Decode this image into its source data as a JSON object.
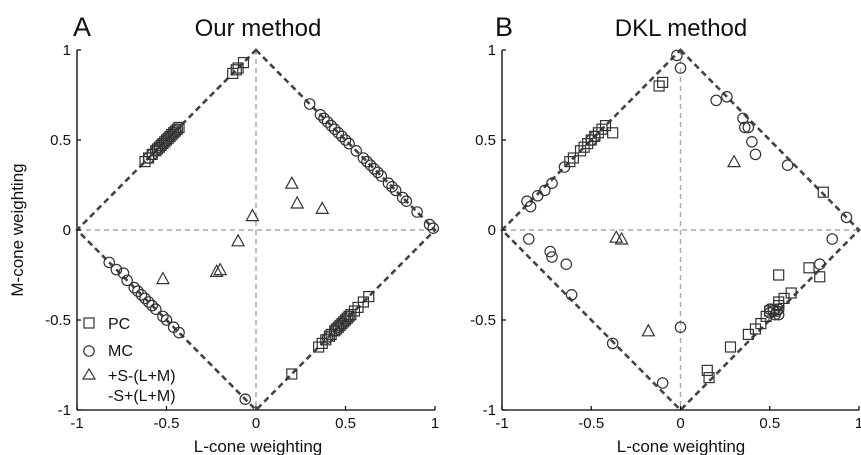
{
  "figure": {
    "ylabel": "M-cone weighting"
  },
  "chart_data": [
    {
      "type": "scatter",
      "panel_letter": "A",
      "title": "Our method",
      "xlabel": "L-cone weighting",
      "ylabel": "M-cone weighting",
      "xlim": [
        -1,
        1
      ],
      "ylim": [
        -1,
        1
      ],
      "x_tick_labels": [
        "-1",
        "-0.5",
        "0",
        "0.5",
        "1"
      ],
      "y_tick_labels": [
        "1",
        "0.5",
        "0",
        "-0.5",
        "-1"
      ],
      "grid": false,
      "legend_position": "bottom-left",
      "legend": [
        {
          "marker": "square",
          "label": "PC"
        },
        {
          "marker": "circle",
          "label": "MC"
        },
        {
          "marker": "triangle",
          "label": "+S-(L+M)"
        },
        {
          "marker": "none",
          "label": "-S+(L+M)"
        }
      ],
      "series": [
        {
          "name": "PC",
          "marker": "square",
          "points": [
            [
              -0.62,
              0.38
            ],
            [
              -0.6,
              0.4
            ],
            [
              -0.58,
              0.42
            ],
            [
              -0.56,
              0.44
            ],
            [
              -0.55,
              0.45
            ],
            [
              -0.54,
              0.46
            ],
            [
              -0.53,
              0.47
            ],
            [
              -0.52,
              0.48
            ],
            [
              -0.51,
              0.49
            ],
            [
              -0.5,
              0.5
            ],
            [
              -0.49,
              0.51
            ],
            [
              -0.48,
              0.52
            ],
            [
              -0.47,
              0.53
            ],
            [
              -0.46,
              0.54
            ],
            [
              -0.45,
              0.55
            ],
            [
              -0.44,
              0.56
            ],
            [
              -0.43,
              0.57
            ],
            [
              -0.13,
              0.87
            ],
            [
              -0.11,
              0.89
            ],
            [
              -0.1,
              0.9
            ],
            [
              -0.07,
              0.93
            ],
            [
              0.2,
              -0.8
            ],
            [
              0.35,
              -0.65
            ],
            [
              0.37,
              -0.63
            ],
            [
              0.39,
              -0.61
            ],
            [
              0.41,
              -0.59
            ],
            [
              0.42,
              -0.58
            ],
            [
              0.44,
              -0.56
            ],
            [
              0.45,
              -0.55
            ],
            [
              0.46,
              -0.54
            ],
            [
              0.47,
              -0.53
            ],
            [
              0.48,
              -0.52
            ],
            [
              0.49,
              -0.51
            ],
            [
              0.5,
              -0.5
            ],
            [
              0.51,
              -0.49
            ],
            [
              0.52,
              -0.48
            ],
            [
              0.53,
              -0.47
            ],
            [
              0.55,
              -0.45
            ],
            [
              0.57,
              -0.43
            ],
            [
              0.6,
              -0.4
            ],
            [
              0.63,
              -0.37
            ]
          ]
        },
        {
          "name": "MC",
          "marker": "circle",
          "points": [
            [
              -0.6,
              0.4
            ],
            [
              -0.58,
              0.42
            ],
            [
              -0.56,
              0.44
            ],
            [
              -0.54,
              0.46
            ],
            [
              -0.52,
              0.48
            ],
            [
              -0.5,
              0.5
            ],
            [
              -0.48,
              0.52
            ],
            [
              -0.46,
              0.54
            ],
            [
              -0.45,
              0.55
            ],
            [
              -0.44,
              0.56
            ],
            [
              0.3,
              0.7
            ],
            [
              0.36,
              0.64
            ],
            [
              0.38,
              0.62
            ],
            [
              0.4,
              0.6
            ],
            [
              0.42,
              0.58
            ],
            [
              0.44,
              0.56
            ],
            [
              0.46,
              0.54
            ],
            [
              0.48,
              0.52
            ],
            [
              0.5,
              0.5
            ],
            [
              0.52,
              0.48
            ],
            [
              0.56,
              0.44
            ],
            [
              0.6,
              0.4
            ],
            [
              0.62,
              0.38
            ],
            [
              0.64,
              0.36
            ],
            [
              0.66,
              0.34
            ],
            [
              0.68,
              0.32
            ],
            [
              0.7,
              0.3
            ],
            [
              0.74,
              0.26
            ],
            [
              0.76,
              0.24
            ],
            [
              0.78,
              0.22
            ],
            [
              0.82,
              0.18
            ],
            [
              0.84,
              0.16
            ],
            [
              0.9,
              0.1
            ],
            [
              0.97,
              0.03
            ],
            [
              0.99,
              0.01
            ],
            [
              -0.82,
              -0.18
            ],
            [
              -0.78,
              -0.22
            ],
            [
              -0.74,
              -0.24
            ],
            [
              -0.72,
              -0.28
            ],
            [
              -0.68,
              -0.32
            ],
            [
              -0.66,
              -0.34
            ],
            [
              -0.64,
              -0.36
            ],
            [
              -0.62,
              -0.38
            ],
            [
              -0.6,
              -0.4
            ],
            [
              -0.58,
              -0.42
            ],
            [
              -0.56,
              -0.44
            ],
            [
              -0.52,
              -0.48
            ],
            [
              -0.5,
              -0.5
            ],
            [
              -0.46,
              -0.54
            ],
            [
              -0.43,
              -0.57
            ],
            [
              -0.06,
              -0.94
            ],
            [
              0.4,
              -0.6
            ],
            [
              0.44,
              -0.56
            ],
            [
              0.46,
              -0.54
            ],
            [
              0.48,
              -0.52
            ],
            [
              0.5,
              -0.5
            ],
            [
              0.52,
              -0.48
            ]
          ]
        },
        {
          "name": "+S-(L+M)",
          "marker": "triangle",
          "points": [
            [
              0.2,
              0.26
            ],
            [
              0.23,
              0.15
            ],
            [
              0.37,
              0.12
            ],
            [
              -0.1,
              -0.06
            ],
            [
              -0.2,
              -0.22
            ],
            [
              -0.22,
              -0.23
            ],
            [
              -0.52,
              -0.27
            ]
          ]
        },
        {
          "name": "-S+(L+M)",
          "marker": "triangle",
          "points": [
            [
              -0.02,
              0.08
            ]
          ]
        }
      ]
    },
    {
      "type": "scatter",
      "panel_letter": "B",
      "title": "DKL method",
      "xlabel": "L-cone weighting",
      "xlim": [
        -1,
        1
      ],
      "ylim": [
        -1,
        1
      ],
      "x_tick_labels": [
        "-1",
        "-0.5",
        "0",
        "0.5",
        "1"
      ],
      "y_tick_labels": [
        "1",
        "0.5",
        "0",
        "-0.5",
        "-1"
      ],
      "grid": false,
      "series": [
        {
          "name": "PC",
          "marker": "square",
          "points": [
            [
              -0.62,
              0.38
            ],
            [
              -0.6,
              0.4
            ],
            [
              -0.56,
              0.44
            ],
            [
              -0.54,
              0.46
            ],
            [
              -0.52,
              0.48
            ],
            [
              -0.5,
              0.5
            ],
            [
              -0.48,
              0.52
            ],
            [
              -0.46,
              0.54
            ],
            [
              -0.44,
              0.56
            ],
            [
              -0.42,
              0.58
            ],
            [
              -0.38,
              0.54
            ],
            [
              -0.12,
              0.8
            ],
            [
              -0.1,
              0.82
            ],
            [
              0.15,
              -0.78
            ],
            [
              0.16,
              -0.82
            ],
            [
              0.28,
              -0.65
            ],
            [
              0.38,
              -0.58
            ],
            [
              0.42,
              -0.55
            ],
            [
              0.45,
              -0.52
            ],
            [
              0.48,
              -0.48
            ],
            [
              0.5,
              -0.45
            ],
            [
              0.52,
              -0.44
            ],
            [
              0.55,
              -0.42
            ],
            [
              0.55,
              -0.4
            ],
            [
              0.58,
              -0.38
            ],
            [
              0.62,
              -0.35
            ],
            [
              0.55,
              -0.25
            ],
            [
              0.72,
              -0.21
            ],
            [
              0.78,
              -0.26
            ],
            [
              0.8,
              0.21
            ]
          ]
        },
        {
          "name": "MC",
          "marker": "circle",
          "points": [
            [
              -0.86,
              0.16
            ],
            [
              -0.84,
              0.13
            ],
            [
              -0.8,
              0.19
            ],
            [
              -0.76,
              0.22
            ],
            [
              -0.72,
              0.26
            ],
            [
              -0.65,
              0.35
            ],
            [
              -0.5,
              0.5
            ],
            [
              -0.48,
              0.52
            ],
            [
              -0.02,
              0.97
            ],
            [
              0.0,
              0.9
            ],
            [
              0.2,
              0.72
            ],
            [
              0.26,
              0.74
            ],
            [
              0.35,
              0.62
            ],
            [
              0.36,
              0.57
            ],
            [
              0.38,
              0.57
            ],
            [
              0.4,
              0.49
            ],
            [
              0.42,
              0.42
            ],
            [
              0.6,
              0.36
            ],
            [
              0.93,
              0.07
            ],
            [
              -0.85,
              -0.05
            ],
            [
              -0.73,
              -0.12
            ],
            [
              -0.72,
              -0.15
            ],
            [
              -0.64,
              -0.19
            ],
            [
              -0.61,
              -0.36
            ],
            [
              -0.38,
              -0.63
            ],
            [
              -0.1,
              -0.85
            ],
            [
              0.0,
              -0.54
            ],
            [
              0.5,
              -0.44
            ],
            [
              0.5,
              -0.46
            ],
            [
              0.52,
              -0.45
            ],
            [
              0.53,
              -0.47
            ],
            [
              0.54,
              -0.45
            ],
            [
              0.55,
              -0.44
            ],
            [
              0.55,
              -0.47
            ],
            [
              0.85,
              -0.05
            ],
            [
              0.78,
              -0.19
            ]
          ]
        },
        {
          "name": "+S-(L+M)",
          "marker": "triangle",
          "points": [
            [
              -0.36,
              -0.04
            ],
            [
              -0.33,
              -0.05
            ],
            [
              -0.18,
              -0.56
            ],
            [
              0.3,
              0.38
            ]
          ]
        }
      ]
    }
  ]
}
